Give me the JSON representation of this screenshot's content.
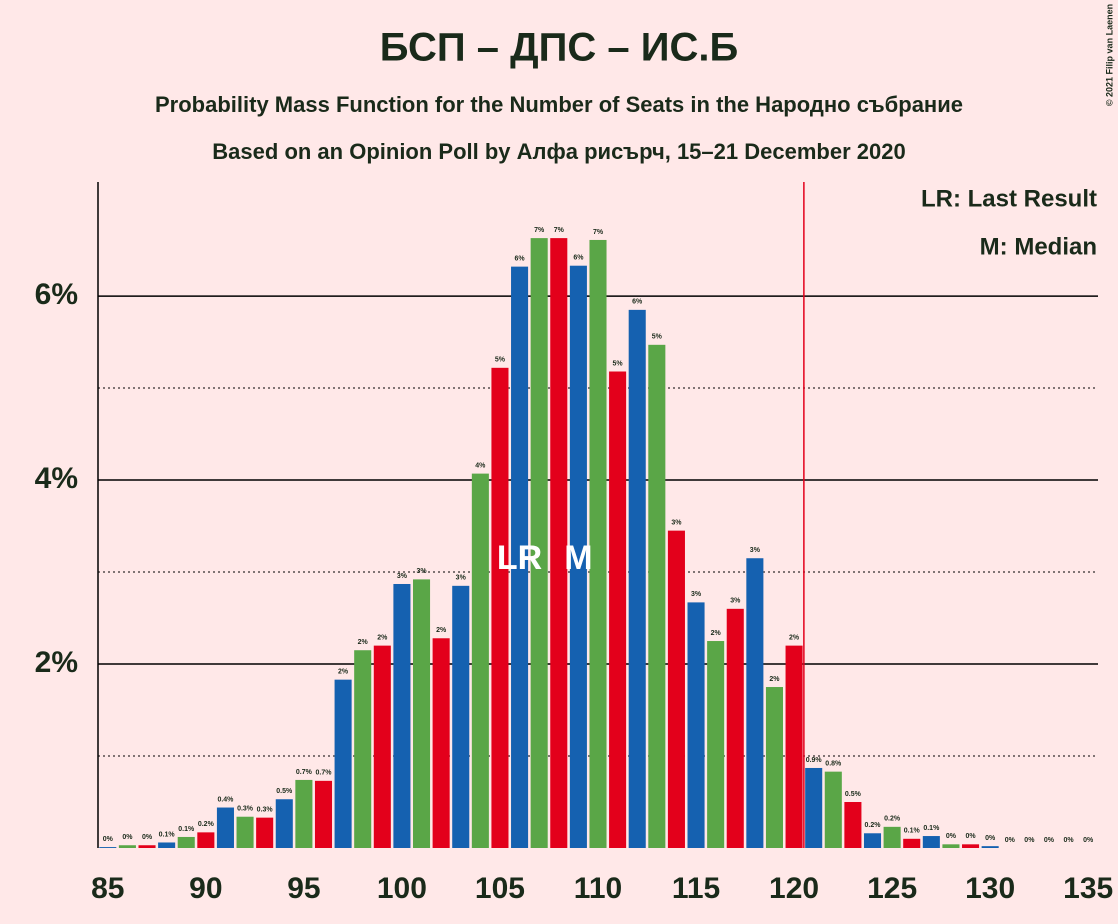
{
  "chart_data": {
    "type": "bar",
    "title": "БСП – ДПС – ИС.Б",
    "subtitles": [
      "Probability Mass Function for the Number of Seats in the Народно събрание",
      "Based on an Opinion Poll by Алфа рисърч, 15–21 December 2020"
    ],
    "credit": "© 2021 Filip van Laenen",
    "x": [
      85,
      86,
      87,
      88,
      89,
      90,
      91,
      92,
      93,
      94,
      95,
      96,
      97,
      98,
      99,
      100,
      101,
      102,
      103,
      104,
      105,
      106,
      107,
      108,
      109,
      110,
      111,
      112,
      113,
      114,
      115,
      116,
      117,
      118,
      119,
      120,
      121,
      122,
      123,
      124,
      125,
      126,
      127,
      128,
      129,
      130,
      131,
      132,
      133,
      134,
      135
    ],
    "values": [
      0.01,
      0.03,
      0.03,
      0.06,
      0.12,
      0.17,
      0.44,
      0.34,
      0.33,
      0.53,
      0.74,
      0.73,
      1.83,
      2.15,
      2.2,
      2.87,
      2.92,
      2.28,
      2.85,
      4.07,
      5.22,
      6.32,
      6.63,
      6.63,
      6.33,
      6.61,
      5.18,
      5.85,
      5.47,
      3.45,
      2.67,
      2.25,
      2.6,
      3.15,
      1.75,
      2.2,
      0.87,
      0.83,
      0.5,
      0.16,
      0.23,
      0.1,
      0.13,
      0.04,
      0.04,
      0.02,
      0,
      0,
      0,
      0,
      0
    ],
    "value_labels": [
      "0%",
      "0%",
      "0%",
      "0.1%",
      "0.1%",
      "0.2%",
      "0.4%",
      "0.3%",
      "0.3%",
      "0.5%",
      "0.7%",
      "0.7%",
      "2%",
      "2%",
      "2%",
      "3%",
      "3%",
      "2%",
      "3%",
      "4%",
      "5%",
      "6%",
      "7%",
      "7%",
      "6%",
      "7%",
      "5%",
      "6%",
      "5%",
      "3%",
      "3%",
      "2%",
      "3%",
      "3%",
      "2%",
      "2%",
      "0.9%",
      "0.8%",
      "0.5%",
      "0.2%",
      "0.2%",
      "0.1%",
      "0.1%",
      "0%",
      "0%",
      "0%",
      "0%",
      "0%",
      "0%",
      "0%",
      "0%"
    ],
    "colors": [
      "#1561b0",
      "#5aa647",
      "#e3001b"
    ],
    "xlim": [
      84.5,
      135.5
    ],
    "xticks": [
      85,
      90,
      95,
      100,
      105,
      110,
      115,
      120,
      125,
      130,
      135
    ],
    "ylim": [
      0,
      7.24
    ],
    "yticks": [
      {
        "value": 2,
        "label": "2%"
      },
      {
        "value": 4,
        "label": "4%"
      },
      {
        "value": 6,
        "label": "6%"
      }
    ],
    "minor_yticks": [
      1,
      3,
      5
    ],
    "grid": true,
    "annotations": [
      {
        "text": "LR",
        "x": 106
      },
      {
        "text": "M",
        "x": 109
      }
    ],
    "legend": [
      "LR: Last Result",
      "M: Median"
    ],
    "threshold_line": {
      "x": 120.5,
      "color": "#e3001b"
    }
  }
}
